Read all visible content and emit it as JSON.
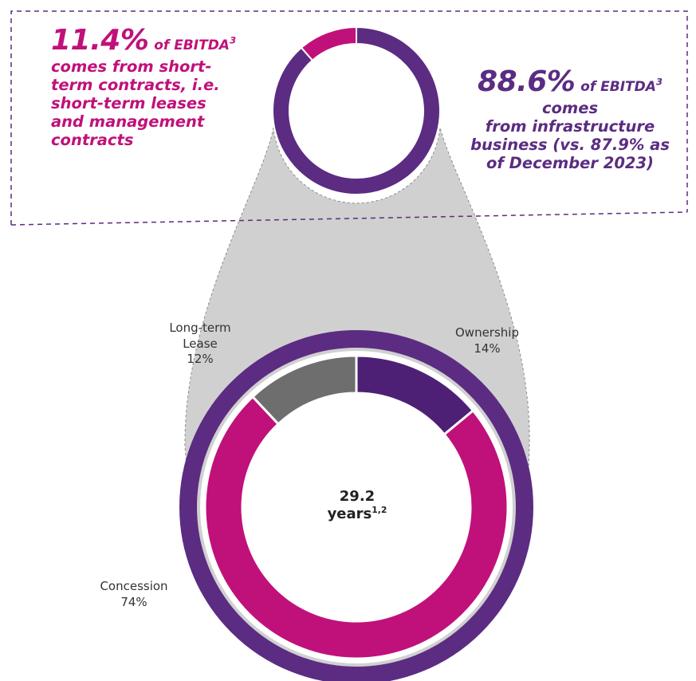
{
  "colors": {
    "purple": "#5B2C82",
    "dark_purple": "#4E2075",
    "magenta": "#C0117A",
    "gray": "#6E6E6E",
    "light_gray": "#D0D0D0",
    "dashed_border": "#5B2C82"
  },
  "callouts": {
    "left": {
      "percent": "11.4%",
      "of_label": "of EBITDA",
      "footnote": "3",
      "line1": "comes from short-",
      "line2": "term contracts, i.e.",
      "line3": "short-term leases",
      "line4": "and management",
      "line5": "contracts"
    },
    "right": {
      "percent": "88.6%",
      "of_label": "of EBITDA",
      "footnote": "3",
      "line1": "comes",
      "line2": "from infrastructure",
      "line3": "business (vs. 87.9% as",
      "line4": "of December 2023)"
    }
  },
  "center_label": {
    "value": "29.2",
    "unit": "years",
    "footnote": "1,2"
  },
  "chart_data": [
    {
      "type": "pie",
      "variant": "donut",
      "categories": [
        "Infrastructure business",
        "Short-term contracts"
      ],
      "values": [
        88.6,
        11.4
      ],
      "colors": [
        "#5B2C82",
        "#C0117A"
      ]
    },
    {
      "type": "pie",
      "variant": "donut",
      "categories": [
        "Ownership",
        "Concession",
        "Long-term Lease"
      ],
      "values": [
        14,
        74,
        12
      ],
      "value_labels": [
        "14%",
        "74%",
        "12%"
      ],
      "colors": [
        "#4E2075",
        "#C0117A",
        "#6E6E6E"
      ]
    }
  ],
  "slice_labels": {
    "ownership": {
      "name": "Ownership",
      "value": "14%"
    },
    "concession": {
      "name": "Concession",
      "value": "74%"
    },
    "long_term_lease": {
      "name_line1": "Long-term",
      "name_line2": "Lease",
      "value": "12%"
    }
  }
}
